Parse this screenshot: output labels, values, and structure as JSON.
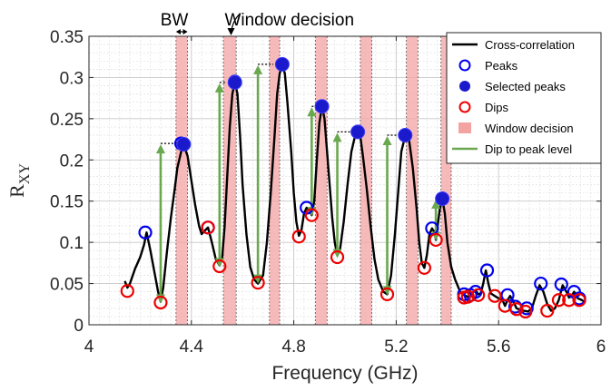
{
  "chart_data": {
    "type": "line",
    "xlabel": "Frequency (GHz)",
    "ylabel_main": "R",
    "ylabel_sub": "XY",
    "xlim": [
      4,
      6
    ],
    "ylim": [
      0,
      0.35
    ],
    "xticks": [
      4,
      4.4,
      4.8,
      5.2,
      5.6,
      6
    ],
    "xtick_labels": [
      "4",
      "4.4",
      "4.8",
      "5.2",
      "5.6",
      "6"
    ],
    "yticks": [
      0,
      0.05,
      0.1,
      0.15,
      0.2,
      0.25,
      0.3,
      0.35
    ],
    "ytick_labels": [
      "0",
      "0.05",
      "0.1",
      "0.15",
      "0.2",
      "0.25",
      "0.3",
      "0.35"
    ],
    "grid": true,
    "legend_position": "top-right",
    "legend": [
      {
        "key": "curve",
        "label": "Cross-correlation"
      },
      {
        "key": "peaks",
        "label": "Peaks"
      },
      {
        "key": "selected",
        "label": "Selected peaks"
      },
      {
        "key": "dips",
        "label": "Dips"
      },
      {
        "key": "window",
        "label": "Window decision"
      },
      {
        "key": "arrow",
        "label": "Dip to peak level"
      }
    ],
    "annotations": {
      "bw": "BW",
      "window": "Window decision"
    },
    "colors": {
      "curve": "#000000",
      "peaks": "#0000ee",
      "selected_fill": "#1a1acc",
      "dips": "#ee0000",
      "window": "#f4a3a3",
      "arrow": "#6aa84f"
    },
    "curve": [
      [
        4.14,
        0.053
      ],
      [
        4.15,
        0.045
      ],
      [
        4.16,
        0.05
      ],
      [
        4.18,
        0.068
      ],
      [
        4.2,
        0.082
      ],
      [
        4.215,
        0.097
      ],
      [
        4.225,
        0.112
      ],
      [
        4.24,
        0.09
      ],
      [
        4.255,
        0.065
      ],
      [
        4.27,
        0.04
      ],
      [
        4.28,
        0.028
      ],
      [
        4.29,
        0.045
      ],
      [
        4.305,
        0.09
      ],
      [
        4.32,
        0.13
      ],
      [
        4.335,
        0.165
      ],
      [
        4.345,
        0.19
      ],
      [
        4.36,
        0.21
      ],
      [
        4.37,
        0.218
      ],
      [
        4.385,
        0.205
      ],
      [
        4.4,
        0.175
      ],
      [
        4.415,
        0.145
      ],
      [
        4.43,
        0.12
      ],
      [
        4.44,
        0.11
      ],
      [
        4.455,
        0.115
      ],
      [
        4.465,
        0.118
      ],
      [
        4.48,
        0.1
      ],
      [
        4.495,
        0.08
      ],
      [
        4.51,
        0.072
      ],
      [
        4.52,
        0.08
      ],
      [
        4.53,
        0.12
      ],
      [
        4.54,
        0.18
      ],
      [
        4.55,
        0.24
      ],
      [
        4.56,
        0.28
      ],
      [
        4.57,
        0.295
      ],
      [
        4.58,
        0.28
      ],
      [
        4.59,
        0.23
      ],
      [
        4.6,
        0.17
      ],
      [
        4.615,
        0.11
      ],
      [
        4.63,
        0.07
      ],
      [
        4.645,
        0.055
      ],
      [
        4.66,
        0.05
      ],
      [
        4.68,
        0.06
      ],
      [
        4.695,
        0.1
      ],
      [
        4.71,
        0.16
      ],
      [
        4.725,
        0.23
      ],
      [
        4.735,
        0.28
      ],
      [
        4.745,
        0.305
      ],
      [
        4.755,
        0.315
      ],
      [
        4.765,
        0.305
      ],
      [
        4.775,
        0.27
      ],
      [
        4.79,
        0.21
      ],
      [
        4.8,
        0.16
      ],
      [
        4.81,
        0.125
      ],
      [
        4.82,
        0.108
      ],
      [
        4.83,
        0.115
      ],
      [
        4.84,
        0.135
      ],
      [
        4.85,
        0.142
      ],
      [
        4.86,
        0.14
      ],
      [
        4.87,
        0.133
      ],
      [
        4.88,
        0.15
      ],
      [
        4.89,
        0.2
      ],
      [
        4.9,
        0.245
      ],
      [
        4.91,
        0.265
      ],
      [
        4.92,
        0.25
      ],
      [
        4.935,
        0.19
      ],
      [
        4.95,
        0.13
      ],
      [
        4.96,
        0.1
      ],
      [
        4.97,
        0.084
      ],
      [
        4.98,
        0.09
      ],
      [
        4.995,
        0.125
      ],
      [
        5.01,
        0.17
      ],
      [
        5.025,
        0.21
      ],
      [
        5.04,
        0.23
      ],
      [
        5.05,
        0.234
      ],
      [
        5.06,
        0.228
      ],
      [
        5.07,
        0.205
      ],
      [
        5.085,
        0.165
      ],
      [
        5.1,
        0.12
      ],
      [
        5.115,
        0.08
      ],
      [
        5.13,
        0.055
      ],
      [
        5.15,
        0.04
      ],
      [
        5.165,
        0.037
      ],
      [
        5.18,
        0.06
      ],
      [
        5.195,
        0.11
      ],
      [
        5.21,
        0.17
      ],
      [
        5.22,
        0.21
      ],
      [
        5.235,
        0.229
      ],
      [
        5.25,
        0.225
      ],
      [
        5.265,
        0.19
      ],
      [
        5.28,
        0.14
      ],
      [
        5.29,
        0.1
      ],
      [
        5.3,
        0.075
      ],
      [
        5.31,
        0.069
      ],
      [
        5.32,
        0.085
      ],
      [
        5.33,
        0.11
      ],
      [
        5.34,
        0.117
      ],
      [
        5.35,
        0.112
      ],
      [
        5.355,
        0.103
      ],
      [
        5.36,
        0.115
      ],
      [
        5.37,
        0.14
      ],
      [
        5.38,
        0.153
      ],
      [
        5.39,
        0.135
      ],
      [
        5.4,
        0.1
      ],
      [
        5.415,
        0.07
      ],
      [
        5.43,
        0.055
      ],
      [
        5.45,
        0.04
      ],
      [
        5.465,
        0.036
      ],
      [
        5.48,
        0.034
      ],
      [
        5.495,
        0.038
      ],
      [
        5.51,
        0.042
      ],
      [
        5.52,
        0.037
      ],
      [
        5.53,
        0.038
      ],
      [
        5.54,
        0.05
      ],
      [
        5.55,
        0.066
      ],
      [
        5.56,
        0.05
      ],
      [
        5.57,
        0.038
      ],
      [
        5.585,
        0.035
      ],
      [
        5.6,
        0.032
      ],
      [
        5.615,
        0.03
      ],
      [
        5.625,
        0.023
      ],
      [
        5.635,
        0.03
      ],
      [
        5.645,
        0.035
      ],
      [
        5.655,
        0.03
      ],
      [
        5.67,
        0.02
      ],
      [
        5.685,
        0.018
      ],
      [
        5.7,
        0.017
      ],
      [
        5.715,
        0.016
      ],
      [
        5.73,
        0.02
      ],
      [
        5.745,
        0.035
      ],
      [
        5.76,
        0.048
      ],
      [
        5.775,
        0.04
      ],
      [
        5.79,
        0.025
      ],
      [
        5.805,
        0.017
      ],
      [
        5.82,
        0.02
      ],
      [
        5.835,
        0.03
      ],
      [
        5.85,
        0.048
      ],
      [
        5.865,
        0.04
      ],
      [
        5.875,
        0.033
      ],
      [
        5.885,
        0.035
      ],
      [
        5.895,
        0.04
      ],
      [
        5.91,
        0.032
      ],
      [
        5.925,
        0.03
      ],
      [
        5.94,
        0.027
      ]
    ],
    "peaks": [
      [
        4.22,
        0.112
      ],
      [
        4.36,
        0.22
      ],
      [
        4.465,
        0.118
      ],
      [
        4.57,
        0.295
      ],
      [
        4.755,
        0.316
      ],
      [
        4.85,
        0.142
      ],
      [
        4.91,
        0.265
      ],
      [
        5.05,
        0.234
      ],
      [
        5.235,
        0.23
      ],
      [
        5.34,
        0.117
      ],
      [
        5.38,
        0.153
      ],
      [
        5.465,
        0.037
      ],
      [
        5.49,
        0.036
      ],
      [
        5.51,
        0.04
      ],
      [
        5.555,
        0.066
      ],
      [
        5.635,
        0.036
      ],
      [
        5.665,
        0.022
      ],
      [
        5.71,
        0.02
      ],
      [
        5.765,
        0.05
      ],
      [
        5.845,
        0.049
      ],
      [
        5.895,
        0.04
      ],
      [
        5.915,
        0.032
      ]
    ],
    "selected_peaks": [
      [
        4.37,
        0.219
      ],
      [
        4.57,
        0.294
      ],
      [
        4.755,
        0.316
      ],
      [
        4.91,
        0.265
      ],
      [
        5.05,
        0.234
      ],
      [
        5.235,
        0.23
      ],
      [
        5.38,
        0.153
      ]
    ],
    "dips": [
      [
        4.15,
        0.041
      ],
      [
        4.28,
        0.027
      ],
      [
        4.465,
        0.118
      ],
      [
        4.51,
        0.071
      ],
      [
        4.66,
        0.051
      ],
      [
        4.82,
        0.107
      ],
      [
        4.87,
        0.133
      ],
      [
        4.97,
        0.082
      ],
      [
        5.165,
        0.037
      ],
      [
        5.31,
        0.069
      ],
      [
        5.355,
        0.103
      ],
      [
        5.465,
        0.033
      ],
      [
        5.48,
        0.034
      ],
      [
        5.52,
        0.036
      ],
      [
        5.585,
        0.035
      ],
      [
        5.625,
        0.023
      ],
      [
        5.67,
        0.019
      ],
      [
        5.705,
        0.016
      ],
      [
        5.79,
        0.017
      ],
      [
        5.835,
        0.03
      ],
      [
        5.875,
        0.03
      ],
      [
        5.915,
        0.03
      ]
    ],
    "windows": [
      [
        4.34,
        4.385
      ],
      [
        4.525,
        4.575
      ],
      [
        4.705,
        4.745
      ],
      [
        4.885,
        4.93
      ],
      [
        5.06,
        5.105
      ],
      [
        5.24,
        5.285
      ],
      [
        5.375,
        5.415
      ]
    ],
    "arrows": [
      [
        4.28,
        0.027,
        0.22
      ],
      [
        4.51,
        0.071,
        0.294
      ],
      [
        4.66,
        0.051,
        0.316
      ],
      [
        4.87,
        0.133,
        0.265
      ],
      [
        4.97,
        0.082,
        0.234
      ],
      [
        5.165,
        0.037,
        0.23
      ],
      [
        5.355,
        0.103,
        0.153
      ]
    ],
    "connectors": [
      [
        4.28,
        4.345,
        0.22
      ],
      [
        4.51,
        4.535,
        0.294
      ],
      [
        4.66,
        4.72,
        0.316
      ],
      [
        4.87,
        4.895,
        0.265
      ],
      [
        4.97,
        5.04,
        0.234
      ],
      [
        5.165,
        5.22,
        0.23
      ],
      [
        5.355,
        5.37,
        0.153
      ]
    ],
    "bw_span": [
      4.34,
      4.385
    ],
    "bw_label_x": 4.35,
    "window_annot_x": 4.53,
    "window_arrow_x": 4.555
  }
}
